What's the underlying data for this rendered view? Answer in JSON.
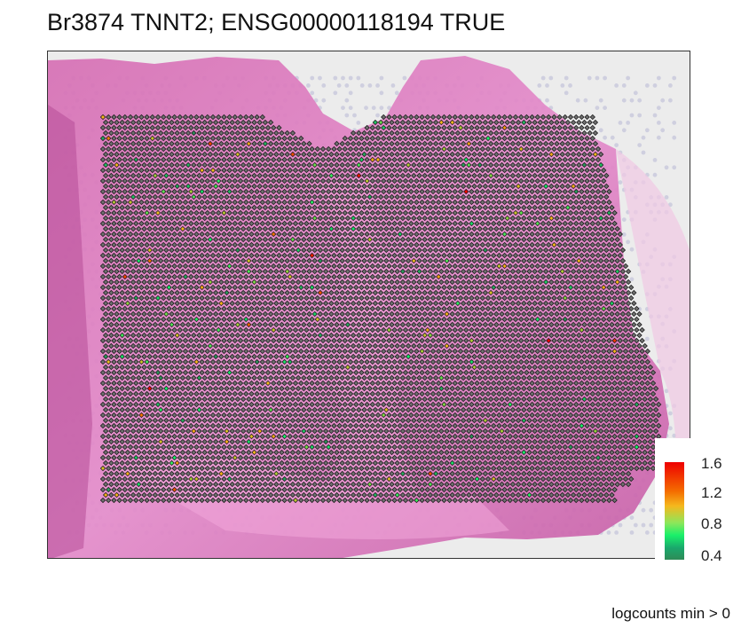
{
  "chart_data": {
    "type": "scatter",
    "title": "Br3874 TNNT2; ENSG00000118194 TRUE",
    "subtitle": "",
    "xlabel": "",
    "ylabel": "",
    "background": "H&E tissue image",
    "legend": {
      "position": "bottom-right",
      "ticks": [
        "1.6",
        "1.2",
        "0.8",
        "0.4"
      ],
      "range": [
        0.3,
        1.65
      ],
      "colors": [
        "#2e8b57",
        "#19f06a",
        "#f5b81e",
        "#f46d00",
        "#ee0000"
      ]
    },
    "marker": "diamond",
    "na_fill": "#707070",
    "caption": "logcounts min > 0"
  }
}
